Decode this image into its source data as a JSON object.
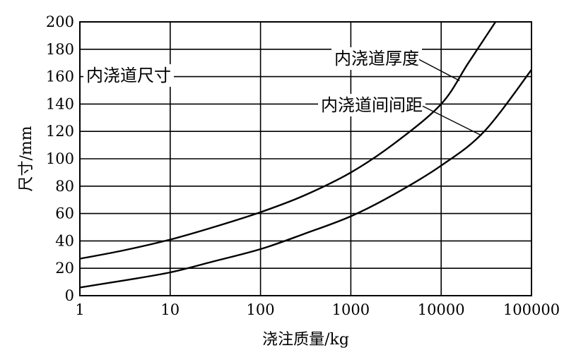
{
  "chart_data": {
    "type": "line",
    "title": "",
    "xlabel": "浇注质量/kg",
    "ylabel": "尺寸/mm",
    "xscale": "log",
    "xlim": [
      1,
      100000
    ],
    "ylim": [
      0,
      200
    ],
    "grid": true,
    "legend": "none",
    "x_ticks": [
      "1",
      "10",
      "100",
      "1000",
      "10000",
      "100000"
    ],
    "y_ticks": [
      "0",
      "20",
      "40",
      "60",
      "80",
      "100",
      "120",
      "140",
      "160",
      "180",
      "200"
    ],
    "annotations": [
      {
        "text": "内浇道尺寸",
        "target": "chart"
      },
      {
        "text": "内浇道厚度",
        "target": "series-0"
      },
      {
        "text": "内浇道间间距",
        "target": "series-1"
      }
    ],
    "series": [
      {
        "name": "内浇道厚度",
        "x": [
          1,
          3,
          10,
          30,
          100,
          300,
          1000,
          3000,
          10000,
          20000,
          40000
        ],
        "y": [
          27,
          33,
          41,
          50,
          61,
          73,
          90,
          111,
          140,
          170,
          200
        ]
      },
      {
        "name": "内浇道间间距",
        "x": [
          1,
          3,
          10,
          30,
          100,
          300,
          1000,
          3000,
          10000,
          30000,
          100000
        ],
        "y": [
          6,
          11,
          17,
          25,
          34,
          45,
          58,
          74,
          95,
          120,
          165
        ]
      }
    ]
  }
}
